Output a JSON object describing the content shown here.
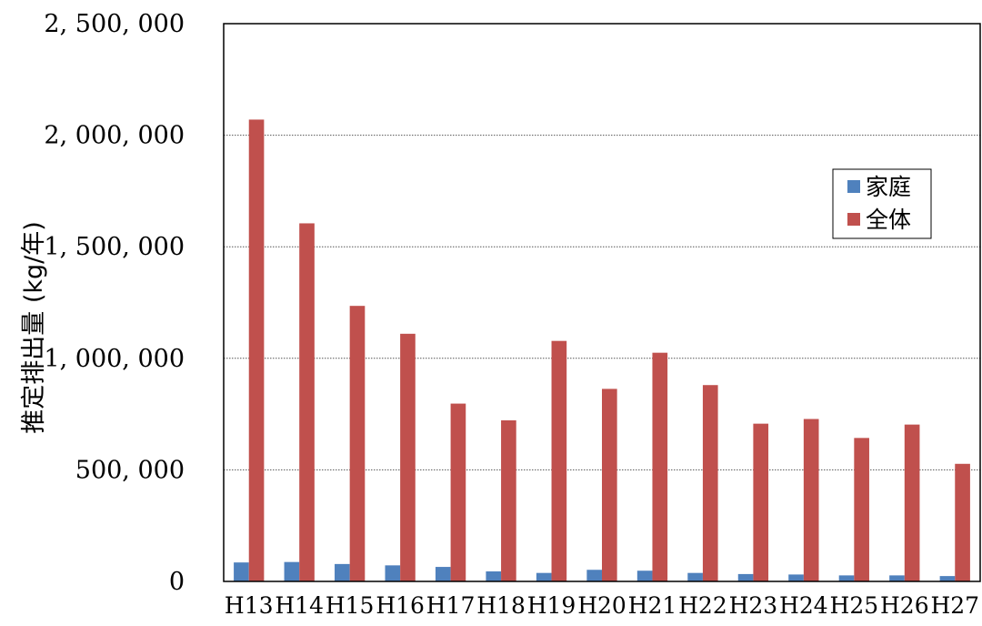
{
  "chart_data": {
    "type": "bar",
    "title": "",
    "xlabel": "",
    "ylabel": "推定排出量 (kg/年)",
    "ylim": [
      0,
      2500000
    ],
    "yticks": [
      0,
      500000,
      1000000,
      1500000,
      2000000,
      2500000
    ],
    "ytick_labels": [
      "0",
      "500, 000",
      "1, 000, 000",
      "1, 500, 000",
      "2, 000, 000",
      "2, 500, 000"
    ],
    "grid": "horizontal",
    "legend_position": "right",
    "categories": [
      "H13",
      "H14",
      "H15",
      "H16",
      "H17",
      "H18",
      "H19",
      "H20",
      "H21",
      "H22",
      "H23",
      "H24",
      "H25",
      "H26",
      "H27"
    ],
    "series": [
      {
        "name": "家庭",
        "color": "#4f81bd",
        "values": [
          85000,
          87000,
          78000,
          72000,
          65000,
          45000,
          38000,
          52000,
          48000,
          38000,
          33000,
          31000,
          27000,
          27000,
          24000
        ]
      },
      {
        "name": "全体",
        "color": "#c0504d",
        "values": [
          2070000,
          1605000,
          1235000,
          1110000,
          797000,
          722000,
          1078000,
          863000,
          1025000,
          880000,
          707000,
          728000,
          643000,
          703000,
          527000
        ]
      }
    ]
  }
}
